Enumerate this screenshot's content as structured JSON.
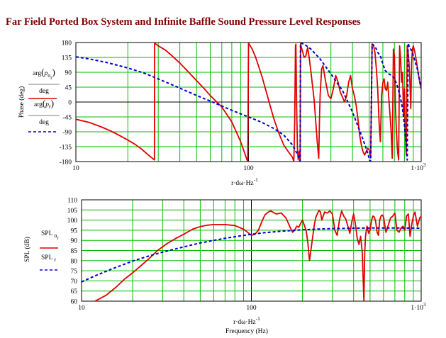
{
  "title": "Far Field Ported Box System and Infinite Baffle Sound Pressure Level Responses",
  "chart_data": [
    {
      "type": "line",
      "xscale": "log",
      "xlim": [
        10,
        1000
      ],
      "ylim": [
        -180,
        180
      ],
      "xticks": [
        10,
        100,
        1000
      ],
      "xtick_labels": [
        "10",
        "100",
        "1·10"
      ],
      "xtick_superscript": "3",
      "yticks": [
        180,
        135,
        90,
        45,
        0,
        -45,
        -90,
        -135,
        -180
      ],
      "ytick_labels": [
        "180",
        "135",
        "90",
        "45",
        "0",
        "-45",
        "-90",
        "-135",
        "-180"
      ],
      "ylabel": "Phase (deg)",
      "xlabel_parts": {
        "base": "r·dω·Hz",
        "sup": "-1"
      },
      "legend": [
        {
          "label_top": "arg(p_{o_r})",
          "label_bottom": "deg",
          "color": "#e00000",
          "style": "solid"
        },
        {
          "label_top": "arg(p_r)",
          "label_bottom": "deg",
          "color": "#0000cc",
          "style": "dashed"
        }
      ],
      "series": [
        {
          "color": "#e00000",
          "style": "solid",
          "x": [
            10,
            12,
            14,
            16,
            18,
            20,
            22,
            24,
            26,
            28.5,
            28.6,
            30,
            33,
            36,
            40,
            45,
            50,
            55,
            60,
            70,
            80,
            90,
            98,
            99,
            100,
            105,
            110,
            120,
            130,
            140,
            150,
            160,
            170,
            180,
            183,
            185,
            187,
            188,
            190,
            192,
            194,
            196,
            198,
            199,
            200,
            210,
            215,
            220,
            225,
            230,
            240,
            250,
            255,
            258,
            260,
            262,
            265,
            270,
            280,
            290,
            300,
            310,
            320,
            330,
            340,
            350,
            360,
            370,
            380,
            390,
            400,
            410,
            420,
            430,
            440,
            450,
            460,
            470,
            480,
            490,
            500,
            510,
            520,
            530,
            540,
            550,
            560,
            570,
            580,
            590,
            600,
            610,
            620,
            630,
            640,
            650,
            660,
            670,
            680,
            690,
            700,
            710,
            720,
            730,
            740,
            750,
            760,
            770,
            780,
            790,
            800,
            810,
            820,
            830,
            840,
            850,
            860,
            870,
            880,
            890,
            900,
            920,
            940,
            960,
            980,
            1000
          ],
          "y": [
            -52,
            -62,
            -75,
            -88,
            -102,
            -115,
            -128,
            -142,
            -158,
            -175,
            178,
            170,
            157,
            140,
            118,
            90,
            65,
            42,
            20,
            -15,
            -60,
            -120,
            -175,
            -180,
            178,
            160,
            135,
            75,
            10,
            -50,
            -95,
            -130,
            -150,
            -168,
            -180,
            -60,
            170,
            175,
            -20,
            -140,
            -175,
            -150,
            -170,
            -175,
            175,
            135,
            140,
            165,
            130,
            90,
            5,
            -120,
            -170,
            -40,
            20,
            55,
            100,
            110,
            60,
            20,
            10,
            40,
            80,
            60,
            30,
            15,
            0,
            20,
            60,
            80,
            40,
            20,
            -10,
            -50,
            -100,
            -130,
            -150,
            -160,
            -150,
            -140,
            -145,
            -165,
            175,
            170,
            150,
            100,
            40,
            -60,
            -120,
            20,
            60,
            70,
            40,
            35,
            60,
            10,
            -40,
            -90,
            -170,
            160,
            140,
            -20,
            -100,
            -150,
            -175,
            170,
            130,
            60,
            90,
            -40,
            40,
            -100,
            -160,
            170,
            150,
            120,
            60,
            -20,
            120,
            160,
            170,
            150,
            120,
            90,
            60,
            40
          ]
        },
        {
          "color": "#0000cc",
          "style": "dashed",
          "x": [
            10,
            12,
            15,
            20,
            25,
            30,
            35,
            40,
            50,
            60,
            70,
            80,
            100,
            120,
            140,
            160,
            180,
            195,
            199,
            200,
            210,
            230,
            260,
            300,
            350,
            400,
            450,
            480,
            500,
            510,
            520,
            530,
            540,
            550,
            560,
            580,
            600,
            620,
            650,
            680,
            700,
            720,
            740,
            760,
            780,
            800,
            820,
            830,
            840,
            850,
            860,
            880,
            900,
            950,
            1000
          ],
          "y": [
            137,
            130,
            120,
            103,
            87,
            70,
            55,
            42,
            20,
            3,
            -12,
            -25,
            -45,
            -62,
            -80,
            -100,
            -130,
            -165,
            -178,
            178,
            175,
            160,
            130,
            85,
            35,
            -30,
            -100,
            -140,
            -170,
            -180,
            175,
            172,
            168,
            160,
            150,
            140,
            115,
            95,
            85,
            80,
            70,
            55,
            35,
            10,
            -20,
            -70,
            -130,
            -175,
            178,
            170,
            165,
            155,
            140,
            100,
            40
          ]
        }
      ]
    },
    {
      "type": "line",
      "xscale": "log",
      "xlim": [
        10,
        1000
      ],
      "ylim": [
        60,
        110
      ],
      "xticks": [
        10,
        100,
        1000
      ],
      "xtick_labels": [
        "10",
        "100",
        "1·10"
      ],
      "xtick_superscript": "3",
      "yticks": [
        110,
        105,
        100,
        95,
        90,
        85,
        80,
        75,
        70,
        65,
        60
      ],
      "ytick_labels": [
        "110",
        "105",
        "100",
        "95",
        "90",
        "85",
        "80",
        "75",
        "70",
        "65",
        "60"
      ],
      "ylabel": "SPL (dB)",
      "xlabel_parts": {
        "base": "r·dω·Hz",
        "sup": "-1"
      },
      "xlabel2": "Frequency (Hz)",
      "legend": [
        {
          "label_top": "SPL",
          "label_sub": "o_r",
          "color": "#e00000",
          "style": "solid"
        },
        {
          "label_top": "SPL",
          "label_sub": "r",
          "color": "#0000cc",
          "style": "dashed"
        }
      ],
      "series": [
        {
          "color": "#e00000",
          "style": "solid",
          "x": [
            12,
            14,
            16,
            18,
            20,
            22,
            25,
            28,
            32,
            36,
            40,
            45,
            50,
            55,
            60,
            70,
            80,
            90,
            95,
            100,
            105,
            110,
            115,
            120,
            125,
            130,
            140,
            150,
            160,
            170,
            175,
            180,
            185,
            190,
            200,
            210,
            215,
            220,
            225,
            230,
            235,
            240,
            250,
            255,
            260,
            270,
            280,
            290,
            300,
            310,
            320,
            330,
            340,
            350,
            360,
            370,
            380,
            390,
            400,
            410,
            420,
            430,
            440,
            450,
            460,
            465,
            470,
            475,
            480,
            490,
            500,
            510,
            520,
            530,
            540,
            550,
            560,
            570,
            580,
            590,
            600,
            620,
            640,
            660,
            680,
            700,
            720,
            740,
            760,
            780,
            800,
            820,
            840,
            860,
            880,
            900,
            920,
            950,
            980,
            1000
          ],
          "y": [
            60,
            63,
            67,
            71,
            74,
            77,
            81,
            85,
            88.5,
            91,
            93,
            95.5,
            96.8,
            97.5,
            97.8,
            97.8,
            97.3,
            95.5,
            94,
            92.5,
            93,
            95,
            99,
            102.5,
            103.8,
            104.5,
            103,
            103.5,
            101,
            96,
            94,
            95,
            97,
            96.5,
            100,
            95,
            89,
            80,
            86,
            92,
            98,
            101.5,
            104.8,
            104,
            100,
            104,
            103.5,
            104.5,
            103,
            95,
            92.5,
            100,
            104.5,
            102,
            100.5,
            97,
            93.5,
            99,
            103,
            98,
            91,
            88,
            92,
            84,
            60,
            84,
            92,
            95,
            97,
            93.5,
            95,
            100,
            102,
            101.5,
            99,
            94,
            92.5,
            100,
            102,
            102.5,
            101.5,
            94,
            97.5,
            101,
            102,
            103.5,
            95,
            94,
            96,
            97,
            95,
            102,
            103,
            92,
            98,
            102,
            104,
            97,
            101,
            102
          ]
        },
        {
          "color": "#0000cc",
          "style": "dashed",
          "x": [
            10,
            12,
            15,
            20,
            25,
            30,
            40,
            50,
            60,
            70,
            80,
            100,
            120,
            150,
            200,
            250,
            300,
            400,
            500,
            600,
            800,
            1000
          ],
          "y": [
            69.5,
            72.5,
            75.8,
            79.8,
            82.3,
            84.2,
            86.8,
            88.7,
            90,
            91,
            91.8,
            93,
            93.8,
            94.5,
            95.2,
            95.6,
            95.8,
            96,
            96.1,
            96.1,
            96.1,
            96
          ]
        }
      ]
    }
  ]
}
